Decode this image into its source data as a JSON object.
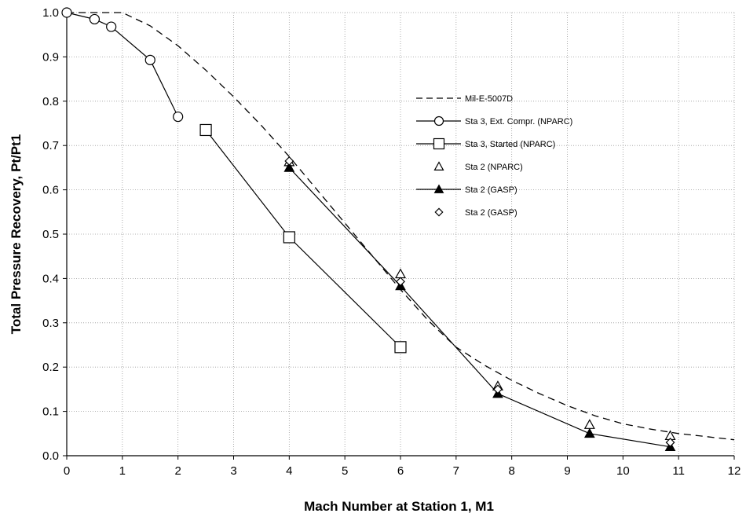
{
  "chart_data": {
    "type": "line",
    "title": "",
    "xlabel": "Mach Number at Station 1, M1",
    "ylabel": "Total Pressure Recovery, Pt/Pt1",
    "xlim": [
      0,
      12
    ],
    "ylim": [
      0,
      1.0
    ],
    "x_ticks": [
      0,
      1,
      2,
      3,
      4,
      5,
      6,
      7,
      8,
      9,
      10,
      11,
      12
    ],
    "y_ticks": [
      0.0,
      0.1,
      0.2,
      0.3,
      0.4,
      0.5,
      0.6,
      0.7,
      0.8,
      0.9,
      1.0
    ],
    "y_tick_labels": [
      "0.0",
      "0.1",
      "0.2",
      "0.3",
      "0.4",
      "0.5",
      "0.6",
      "0.7",
      "0.8",
      "0.9",
      "1.0"
    ],
    "grid": true,
    "legend_placement": "right",
    "series": [
      {
        "name": "Mil-E-5007D",
        "style": "dashed-line",
        "x": [
          0,
          1.0,
          1.5,
          2.0,
          2.5,
          3.0,
          3.5,
          4.0,
          4.5,
          5.0,
          5.5,
          6.0,
          6.5,
          7.0,
          7.5,
          8.0,
          8.5,
          9.0,
          9.5,
          10.0,
          10.5,
          11.0,
          11.5,
          12.0
        ],
        "y": [
          1.0,
          1.0,
          0.97,
          0.925,
          0.87,
          0.81,
          0.745,
          0.675,
          0.6,
          0.525,
          0.45,
          0.375,
          0.305,
          0.245,
          0.205,
          0.17,
          0.14,
          0.113,
          0.09,
          0.072,
          0.06,
          0.05,
          0.043,
          0.036
        ]
      },
      {
        "name": "Sta 3, Ext. Compr. (NPARC)",
        "style": "line-open-circle",
        "x": [
          0,
          0.5,
          0.8,
          1.5,
          2.0
        ],
        "y": [
          1.0,
          0.985,
          0.968,
          0.893,
          0.765
        ]
      },
      {
        "name": "Sta 3, Started (NPARC)",
        "style": "line-open-square",
        "x": [
          2.5,
          4.0,
          6.0
        ],
        "y": [
          0.735,
          0.493,
          0.245
        ]
      },
      {
        "name": "Sta 2 (NPARC)",
        "style": "open-triangle",
        "x": [
          4.0,
          6.0,
          7.75,
          9.4,
          10.85
        ],
        "y": [
          0.663,
          0.41,
          0.157,
          0.07,
          0.045
        ]
      },
      {
        "name": "Sta 2 (GASP)",
        "style": "line-filled-triangle",
        "x": [
          4.0,
          6.0,
          7.75,
          9.4,
          10.85
        ],
        "y": [
          0.65,
          0.383,
          0.14,
          0.05,
          0.02
        ]
      },
      {
        "name": "Sta 2 (GASP)",
        "style": "open-diamond",
        "x": [
          4.0,
          6.0,
          7.75,
          10.85
        ],
        "y": [
          0.665,
          0.393,
          0.15,
          0.03
        ]
      }
    ]
  }
}
